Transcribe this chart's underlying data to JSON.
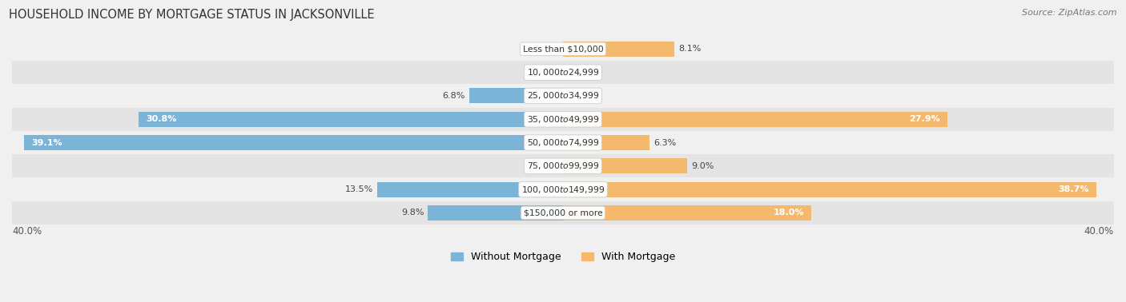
{
  "title": "HOUSEHOLD INCOME BY MORTGAGE STATUS IN JACKSONVILLE",
  "source": "Source: ZipAtlas.com",
  "categories": [
    "Less than $10,000",
    "$10,000 to $24,999",
    "$25,000 to $34,999",
    "$35,000 to $49,999",
    "$50,000 to $74,999",
    "$75,000 to $99,999",
    "$100,000 to $149,999",
    "$150,000 or more"
  ],
  "without_mortgage": [
    0.0,
    0.0,
    6.8,
    30.8,
    39.1,
    0.0,
    13.5,
    9.8
  ],
  "with_mortgage": [
    8.1,
    0.0,
    0.0,
    27.9,
    6.3,
    9.0,
    38.7,
    18.0
  ],
  "color_without": "#7cb4d8",
  "color_without_light": "#a8cce3",
  "color_with": "#f5b96e",
  "color_with_light": "#f8d4a8",
  "axis_limit": 40.0,
  "bg_color": "#f0f0f0",
  "legend_label_without": "Without Mortgage",
  "legend_label_with": "With Mortgage",
  "axis_label_left": "40.0%",
  "axis_label_right": "40.0%",
  "white_text_threshold": 15.0
}
